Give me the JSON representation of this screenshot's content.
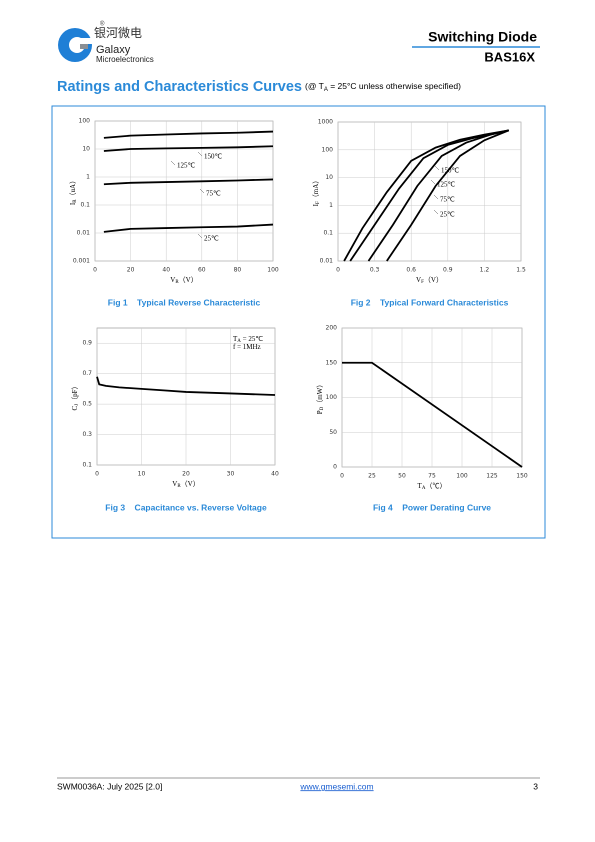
{
  "header": {
    "logo_cn": "银河微电",
    "logo_mark": "®",
    "company": "Galaxy",
    "company_sub": "Microelectronics",
    "product_type": "Switching Diode",
    "part_number": "BAS16X"
  },
  "section": {
    "title": "Ratings and Characteristics Curves",
    "subtitle": {
      "main": "(@ T",
      "sub": "A",
      "rest": " = 25°C unless otherwise specified)"
    }
  },
  "chart_data": [
    {
      "type": "line",
      "caption": "Fig 1    Typical Reverse Characteristic",
      "log_y": true,
      "grid": true,
      "xlabel": {
        "main": "V",
        "sub": "R",
        "rest": "（V）"
      },
      "ylabel": {
        "main": "I",
        "sub": "R",
        "rest": "（uA）"
      },
      "xlim": [
        0,
        100
      ],
      "xticks": [
        0,
        20,
        40,
        60,
        80,
        100
      ],
      "ylim": [
        0.001,
        100
      ],
      "yticks": [
        0.001,
        0.01,
        0.1,
        1,
        10,
        100
      ],
      "series": [
        {
          "name": "150℃",
          "color": "#000000",
          "x": [
            5,
            20,
            40,
            60,
            80,
            100
          ],
          "values": [
            25,
            30,
            33,
            36,
            38,
            42
          ]
        },
        {
          "name": "125℃",
          "color": "#000000",
          "x": [
            5,
            20,
            40,
            60,
            80,
            100
          ],
          "values": [
            8.5,
            10,
            10.5,
            11,
            11.5,
            12.5
          ]
        },
        {
          "name": "75℃",
          "color": "#000000",
          "x": [
            5,
            20,
            40,
            60,
            80,
            100
          ],
          "values": [
            0.55,
            0.62,
            0.66,
            0.7,
            0.75,
            0.82
          ]
        },
        {
          "name": "25℃",
          "color": "#000000",
          "x": [
            5,
            20,
            40,
            60,
            80,
            100
          ],
          "values": [
            0.011,
            0.014,
            0.015,
            0.016,
            0.017,
            0.02
          ]
        }
      ]
    },
    {
      "type": "line",
      "caption": "Fig 2    Typical Forward Characteristics",
      "log_y": true,
      "grid": true,
      "xlabel": {
        "main": "V",
        "sub": "F",
        "rest": "（V）"
      },
      "ylabel": {
        "main": "I",
        "sub": "F",
        "rest": "（mA）"
      },
      "xlim": [
        0,
        1.5
      ],
      "xticks": [
        0,
        0.3,
        0.6,
        0.9,
        1.2,
        1.5
      ],
      "ylim": [
        0.01,
        1000
      ],
      "yticks": [
        0.01,
        0.1,
        1,
        10,
        100,
        1000
      ],
      "series": [
        {
          "name": "150℃",
          "color": "#000000",
          "x": [
            0.05,
            0.2,
            0.4,
            0.6,
            0.8,
            1.0,
            1.2,
            1.4
          ],
          "values": [
            0.01,
            0.15,
            3,
            40,
            120,
            230,
            350,
            500
          ]
        },
        {
          "name": "125℃",
          "color": "#000000",
          "x": [
            0.1,
            0.3,
            0.5,
            0.7,
            0.9,
            1.1,
            1.3,
            1.4
          ],
          "values": [
            0.01,
            0.2,
            4,
            50,
            150,
            260,
            400,
            500
          ]
        },
        {
          "name": "75℃",
          "color": "#000000",
          "x": [
            0.25,
            0.45,
            0.65,
            0.85,
            1.05,
            1.25,
            1.4
          ],
          "values": [
            0.01,
            0.2,
            5,
            60,
            180,
            350,
            500
          ]
        },
        {
          "name": "25℃",
          "color": "#000000",
          "x": [
            0.4,
            0.6,
            0.8,
            1.0,
            1.2,
            1.4
          ],
          "values": [
            0.01,
            0.2,
            5,
            60,
            220,
            500
          ]
        }
      ]
    },
    {
      "type": "line",
      "caption": "Fig 3    Capacitance vs. Reverse Voltage",
      "log_y": false,
      "grid": true,
      "xlabel": {
        "main": "V",
        "sub": "R",
        "rest": "（V）"
      },
      "ylabel": {
        "main": "C",
        "sub": "J",
        "rest": "（pF）"
      },
      "annotations": [
        {
          "main": "T",
          "sub": "A",
          "rest": " = 25℃"
        },
        {
          "main": "f = 1MHz",
          "sub": "",
          "rest": ""
        }
      ],
      "xlim": [
        0,
        40
      ],
      "xticks": [
        0,
        10,
        20,
        30,
        40
      ],
      "ylim": [
        0.1,
        1.0
      ],
      "yticks": [
        0.1,
        0.3,
        0.5,
        0.7,
        0.9
      ],
      "series": [
        {
          "name": "",
          "color": "#000000",
          "x": [
            0,
            0.5,
            2,
            5,
            10,
            15,
            20,
            30,
            40
          ],
          "values": [
            0.68,
            0.63,
            0.62,
            0.61,
            0.6,
            0.59,
            0.58,
            0.57,
            0.56
          ]
        }
      ]
    },
    {
      "type": "line",
      "caption": "Fig 4    Power Derating Curve",
      "log_y": false,
      "grid": true,
      "xlabel": {
        "main": "T",
        "sub": "A",
        "rest": "（℃）"
      },
      "ylabel": {
        "main": "P",
        "sub": "D",
        "rest": "（mW）"
      },
      "xlim": [
        0,
        150
      ],
      "xticks": [
        0,
        25,
        50,
        75,
        100,
        125,
        150
      ],
      "ylim": [
        0,
        200
      ],
      "yticks": [
        0,
        50,
        100,
        150,
        200
      ],
      "series": [
        {
          "name": "",
          "color": "#000000",
          "x": [
            0,
            25,
            150
          ],
          "values": [
            150,
            150,
            0
          ]
        }
      ]
    }
  ],
  "footer": {
    "doc_id": "SWM0036A: July 2025 [2.0]",
    "website": "www.gmesemi.com",
    "page": "3"
  }
}
